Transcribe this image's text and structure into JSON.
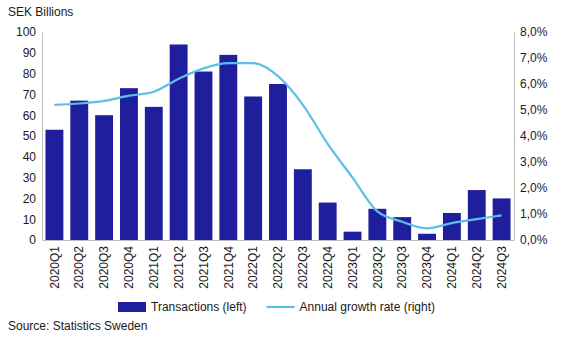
{
  "chart_data": {
    "type": "bar",
    "ylabel": "SEK Billions",
    "source": "Source: Statistics Sweden",
    "categories": [
      "2020Q1",
      "2020Q2",
      "2020Q3",
      "2020Q4",
      "2021Q1",
      "2021Q2",
      "2021Q3",
      "2021Q4",
      "2022Q1",
      "2022Q2",
      "2022Q3",
      "2022Q4",
      "2023Q1",
      "2023Q2",
      "2023Q3",
      "2023Q4",
      "2024Q1",
      "2024Q2",
      "2024Q3"
    ],
    "series": [
      {
        "name": "Transactions (left)",
        "type": "bar",
        "color": "#1f1f9e",
        "values": [
          53,
          67,
          60,
          73,
          64,
          94,
          81,
          89,
          69,
          75,
          34,
          18,
          4,
          15,
          11,
          3,
          13,
          24,
          20
        ]
      },
      {
        "name": "Annual growth rate (right)",
        "type": "line",
        "axis": "y2",
        "color": "#5cbfea",
        "values": [
          5.2,
          5.25,
          5.35,
          5.55,
          5.7,
          6.2,
          6.6,
          6.8,
          6.8,
          6.3,
          5.2,
          3.7,
          2.4,
          1.1,
          0.7,
          0.45,
          0.65,
          0.8,
          0.95
        ]
      }
    ],
    "ylim": [
      0,
      100
    ],
    "yticks": [
      0,
      10,
      20,
      30,
      40,
      50,
      60,
      70,
      80,
      90,
      100
    ],
    "y2lim": [
      0,
      8
    ],
    "y2ticks": [
      {
        "value": 0,
        "label": "0,0%"
      },
      {
        "value": 1,
        "label": "1,0%"
      },
      {
        "value": 2,
        "label": "2,0%"
      },
      {
        "value": 3,
        "label": "3,0%"
      },
      {
        "value": 4,
        "label": "4,0%"
      },
      {
        "value": 5,
        "label": "5,0%"
      },
      {
        "value": 6,
        "label": "6,0%"
      },
      {
        "value": 7,
        "label": "7,0%"
      },
      {
        "value": 8,
        "label": "8,0%"
      }
    ],
    "grid": false,
    "legend": "bottom"
  }
}
